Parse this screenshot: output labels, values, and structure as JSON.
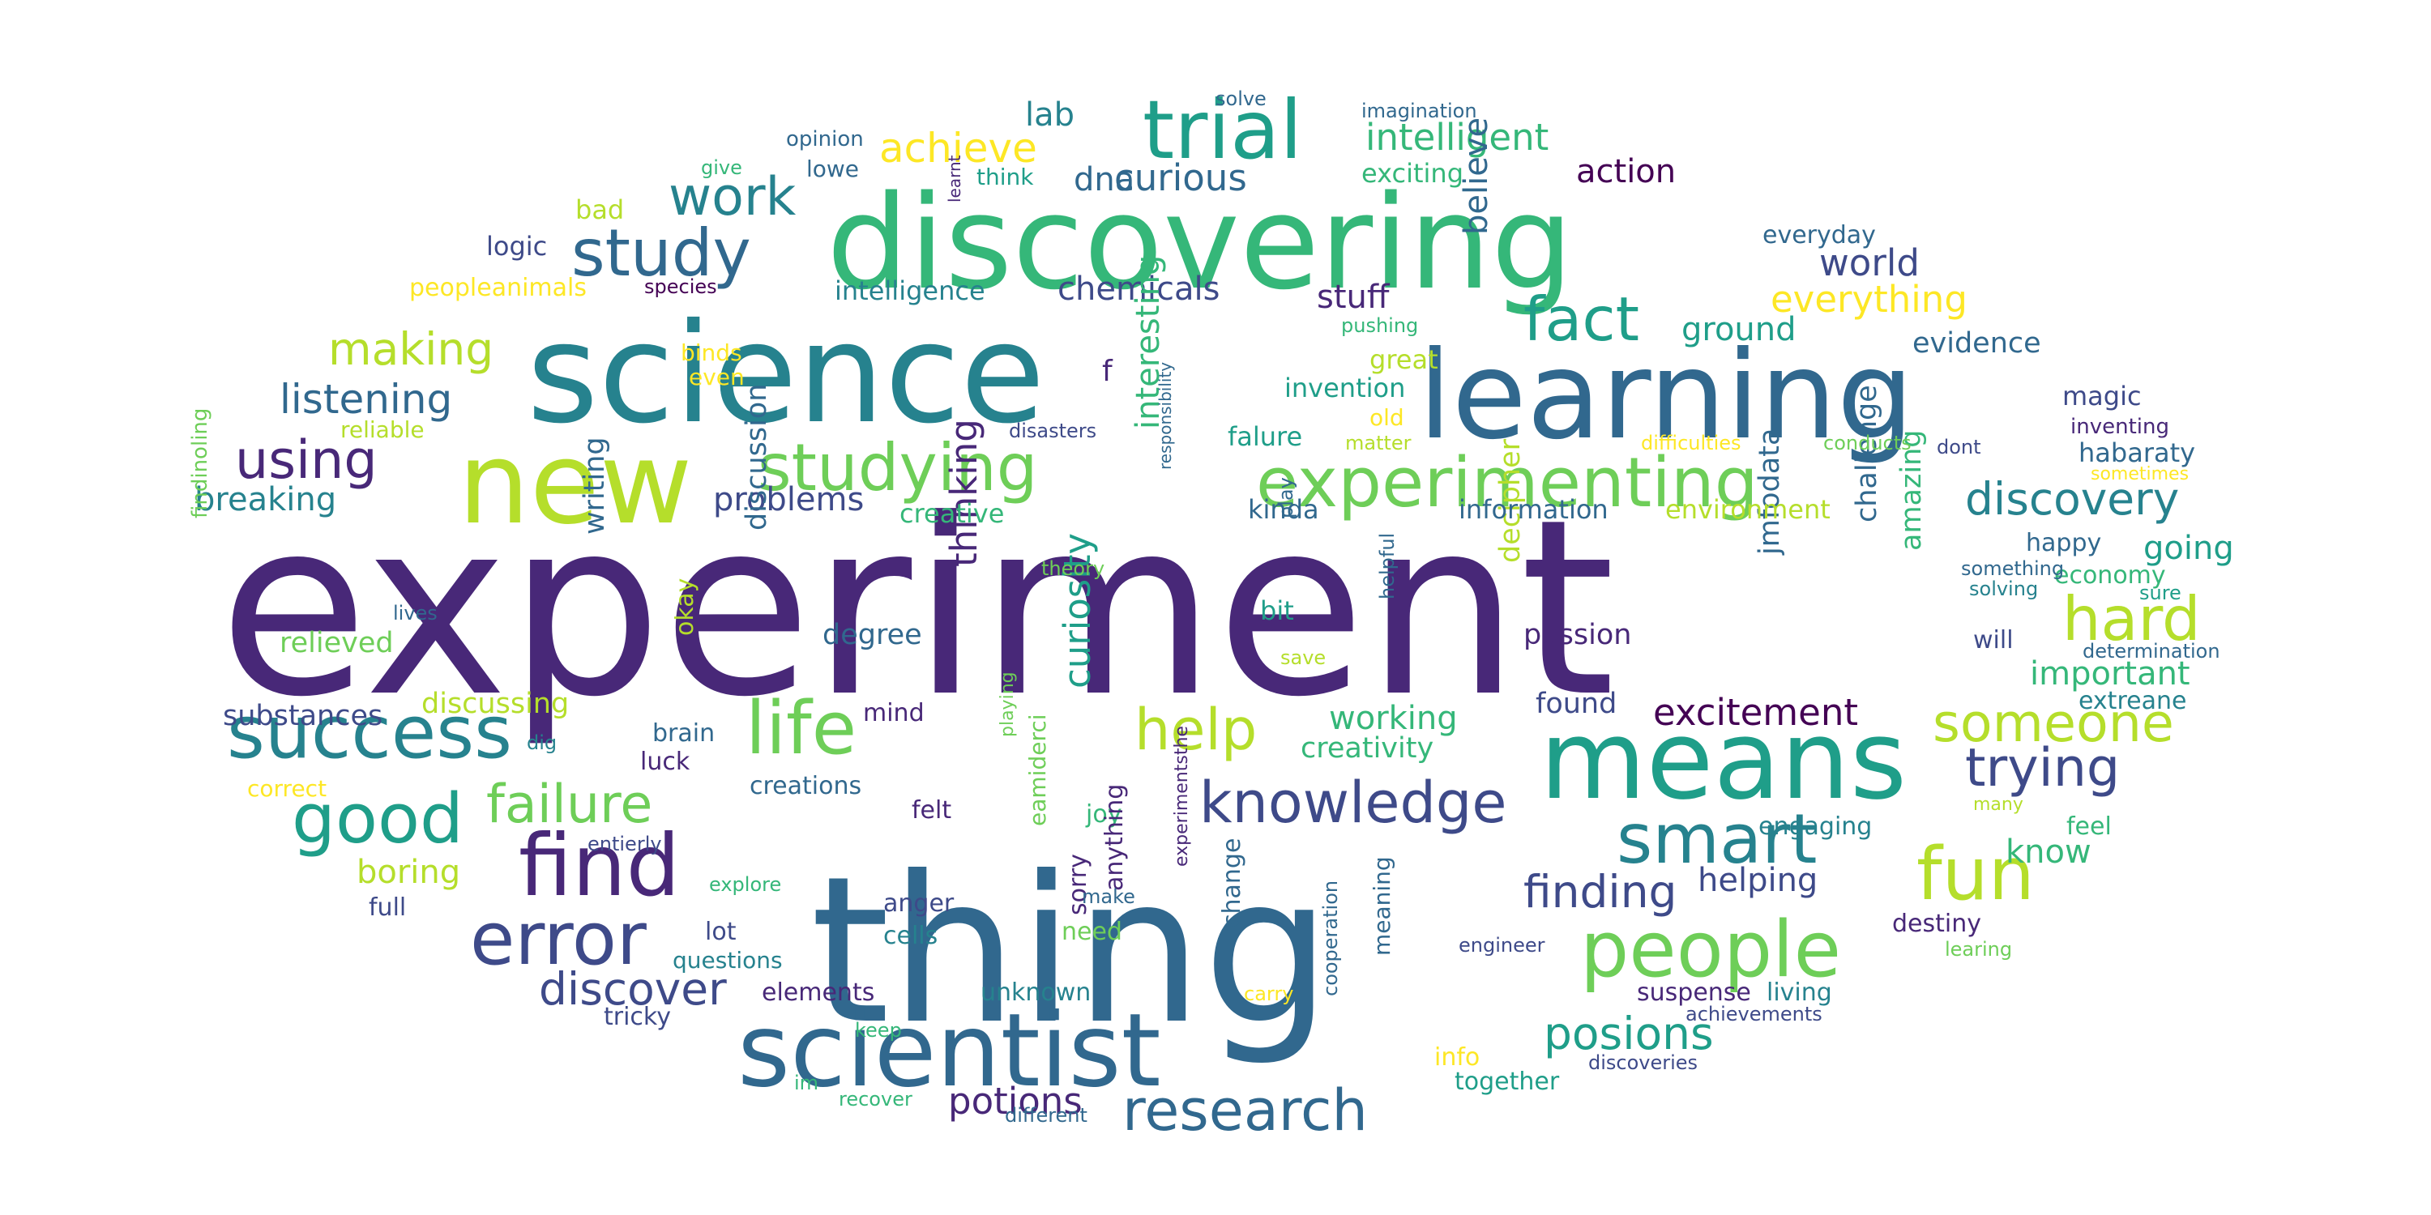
{
  "palette": {
    "purple": "#482878",
    "blue": "#3e4a89",
    "slate": "#31688e",
    "teal": "#26828e",
    "green": "#1f9e89",
    "mint": "#35b779",
    "lime": "#6ece58",
    "yellowgreen": "#b5de2b",
    "yellow": "#fde725",
    "dark": "#440154"
  },
  "words": [
    {
      "text": "experiment",
      "color": "purple"
    },
    {
      "text": "thing",
      "color": "slate"
    },
    {
      "text": "science",
      "color": "teal"
    },
    {
      "text": "discovering",
      "color": "mint"
    },
    {
      "text": "learning",
      "color": "slate"
    },
    {
      "text": "means",
      "color": "green"
    },
    {
      "text": "new",
      "color": "yellowgreen"
    },
    {
      "text": "experimenting",
      "color": "lime"
    },
    {
      "text": "scientist",
      "color": "slate"
    },
    {
      "text": "people",
      "color": "lime"
    },
    {
      "text": "trial",
      "color": "green"
    },
    {
      "text": "studying",
      "color": "lime"
    },
    {
      "text": "find",
      "color": "purple"
    },
    {
      "text": "error",
      "color": "blue"
    },
    {
      "text": "success",
      "color": "teal"
    },
    {
      "text": "good",
      "color": "green"
    },
    {
      "text": "life",
      "color": "lime"
    },
    {
      "text": "fact",
      "color": "green"
    },
    {
      "text": "study",
      "color": "slate"
    },
    {
      "text": "hard",
      "color": "yellowgreen"
    },
    {
      "text": "fun",
      "color": "yellowgreen"
    },
    {
      "text": "smart",
      "color": "teal"
    },
    {
      "text": "knowledge",
      "color": "blue"
    },
    {
      "text": "help",
      "color": "yellowgreen"
    },
    {
      "text": "failure",
      "color": "lime"
    },
    {
      "text": "research",
      "color": "slate"
    },
    {
      "text": "trying",
      "color": "blue"
    },
    {
      "text": "someone",
      "color": "yellowgreen"
    },
    {
      "text": "discover",
      "color": "blue"
    },
    {
      "text": "work",
      "color": "teal"
    },
    {
      "text": "using",
      "color": "purple"
    },
    {
      "text": "finding",
      "color": "blue"
    },
    {
      "text": "posions",
      "color": "green"
    },
    {
      "text": "discovery",
      "color": "teal"
    },
    {
      "text": "making",
      "color": "yellowgreen"
    },
    {
      "text": "excitement",
      "color": "dark"
    },
    {
      "text": "intelligent",
      "color": "mint"
    },
    {
      "text": "achieve",
      "color": "yellow"
    },
    {
      "text": "everything",
      "color": "yellow"
    },
    {
      "text": "listening",
      "color": "slate"
    },
    {
      "text": "world",
      "color": "blue"
    },
    {
      "text": "curious",
      "color": "slate"
    },
    {
      "text": "potions",
      "color": "purple"
    },
    {
      "text": "chemicals",
      "color": "blue"
    },
    {
      "text": "stuff",
      "color": "purple"
    },
    {
      "text": "ground",
      "color": "green"
    },
    {
      "text": "going",
      "color": "green"
    },
    {
      "text": "important",
      "color": "mint"
    },
    {
      "text": "working",
      "color": "mint"
    },
    {
      "text": "helping",
      "color": "blue"
    },
    {
      "text": "know",
      "color": "mint"
    },
    {
      "text": "believe",
      "color": "slate"
    },
    {
      "text": "breaking",
      "color": "teal"
    },
    {
      "text": "problems",
      "color": "blue"
    },
    {
      "text": "boring",
      "color": "yellowgreen"
    },
    {
      "text": "action",
      "color": "dark"
    },
    {
      "text": "lab",
      "color": "teal"
    },
    {
      "text": "dna",
      "color": "slate"
    },
    {
      "text": "curiosity",
      "color": "green"
    },
    {
      "text": "thinking",
      "color": "purple"
    },
    {
      "text": "interesting",
      "color": "mint"
    },
    {
      "text": "discussing",
      "color": "yellowgreen"
    },
    {
      "text": "substances",
      "color": "blue"
    },
    {
      "text": "relieved",
      "color": "lime"
    },
    {
      "text": "writing",
      "color": "slate"
    },
    {
      "text": "discussion",
      "color": "slate"
    },
    {
      "text": "degree",
      "color": "slate"
    },
    {
      "text": "creativity",
      "color": "mint"
    },
    {
      "text": "passion",
      "color": "purple"
    },
    {
      "text": "found",
      "color": "blue"
    },
    {
      "text": "challenge",
      "color": "slate"
    },
    {
      "text": "amazing",
      "color": "mint"
    },
    {
      "text": "jmfodata",
      "color": "slate"
    },
    {
      "text": "decipher",
      "color": "yellowgreen"
    },
    {
      "text": "evidence",
      "color": "slate"
    },
    {
      "text": "magic",
      "color": "blue"
    },
    {
      "text": "habaraty",
      "color": "slate"
    },
    {
      "text": "environment",
      "color": "yellowgreen"
    },
    {
      "text": "information",
      "color": "slate"
    },
    {
      "text": "creative",
      "color": "mint"
    },
    {
      "text": "invention",
      "color": "green"
    },
    {
      "text": "great",
      "color": "yellowgreen"
    },
    {
      "text": "falure",
      "color": "green"
    },
    {
      "text": "kinda",
      "color": "slate"
    },
    {
      "text": "bit",
      "color": "green"
    },
    {
      "text": "intelligence",
      "color": "teal"
    },
    {
      "text": "exciting",
      "color": "mint"
    },
    {
      "text": "logic",
      "color": "blue"
    },
    {
      "text": "bad",
      "color": "yellowgreen"
    },
    {
      "text": "peopleanimals",
      "color": "yellow"
    },
    {
      "text": "everyday",
      "color": "slate"
    },
    {
      "text": "happy",
      "color": "slate"
    },
    {
      "text": "economy",
      "color": "mint"
    },
    {
      "text": "will",
      "color": "blue"
    },
    {
      "text": "extreane",
      "color": "teal"
    },
    {
      "text": "feel",
      "color": "mint"
    },
    {
      "text": "engaging",
      "color": "teal"
    },
    {
      "text": "destiny",
      "color": "purple"
    },
    {
      "text": "living",
      "color": "teal"
    },
    {
      "text": "suspense",
      "color": "purple"
    },
    {
      "text": "unknown",
      "color": "teal"
    },
    {
      "text": "elements",
      "color": "purple"
    },
    {
      "text": "cells",
      "color": "teal"
    },
    {
      "text": "anger",
      "color": "blue"
    },
    {
      "text": "lot",
      "color": "blue"
    },
    {
      "text": "questions",
      "color": "teal"
    },
    {
      "text": "tricky",
      "color": "blue"
    },
    {
      "text": "creations",
      "color": "slate"
    },
    {
      "text": "felt",
      "color": "purple"
    },
    {
      "text": "joy",
      "color": "mint"
    },
    {
      "text": "need",
      "color": "lime"
    },
    {
      "text": "change",
      "color": "slate"
    },
    {
      "text": "sorry",
      "color": "purple"
    },
    {
      "text": "together",
      "color": "green"
    },
    {
      "text": "info",
      "color": "yellow"
    },
    {
      "text": "brain",
      "color": "slate"
    },
    {
      "text": "luck",
      "color": "purple"
    },
    {
      "text": "mind",
      "color": "purple"
    },
    {
      "text": "full",
      "color": "blue"
    },
    {
      "text": "reliable",
      "color": "yellowgreen"
    },
    {
      "text": "binds",
      "color": "yellow"
    },
    {
      "text": "even",
      "color": "yellow"
    },
    {
      "text": "old",
      "color": "yellow"
    },
    {
      "text": "okay",
      "color": "yellowgreen"
    },
    {
      "text": "anything",
      "color": "purple"
    },
    {
      "text": "eamiderci",
      "color": "lime"
    },
    {
      "text": "meaning",
      "color": "slate"
    },
    {
      "text": "cooperation",
      "color": "slate"
    },
    {
      "text": "engineer",
      "color": "blue"
    },
    {
      "text": "achievements",
      "color": "blue"
    },
    {
      "text": "discoveries",
      "color": "blue"
    },
    {
      "text": "learing",
      "color": "lime"
    },
    {
      "text": "many",
      "color": "yellowgreen"
    },
    {
      "text": "sure",
      "color": "green"
    },
    {
      "text": "solving",
      "color": "teal"
    },
    {
      "text": "something",
      "color": "slate"
    },
    {
      "text": "determination",
      "color": "slate"
    },
    {
      "text": "inventing",
      "color": "purple"
    },
    {
      "text": "dont",
      "color": "blue"
    },
    {
      "text": "sometimes",
      "color": "yellow"
    },
    {
      "text": "conducts",
      "color": "lime"
    },
    {
      "text": "difficulties",
      "color": "yellow"
    },
    {
      "text": "matter",
      "color": "yellowgreen"
    },
    {
      "text": "disasters",
      "color": "blue"
    },
    {
      "text": "pushing",
      "color": "mint"
    },
    {
      "text": "species",
      "color": "dark"
    },
    {
      "text": "think",
      "color": "green"
    },
    {
      "text": "lowe",
      "color": "slate"
    },
    {
      "text": "opinion",
      "color": "slate"
    },
    {
      "text": "give",
      "color": "mint"
    },
    {
      "text": "learnt",
      "color": "purple"
    },
    {
      "text": "solve",
      "color": "slate"
    },
    {
      "text": "imagination",
      "color": "slate"
    },
    {
      "text": "findinoling",
      "color": "lime"
    },
    {
      "text": "lives",
      "color": "slate"
    },
    {
      "text": "dig",
      "color": "teal"
    },
    {
      "text": "correct",
      "color": "yellow"
    },
    {
      "text": "entierly",
      "color": "blue"
    },
    {
      "text": "explore",
      "color": "mint"
    },
    {
      "text": "keep",
      "color": "mint"
    },
    {
      "text": "im",
      "color": "mint"
    },
    {
      "text": "recover",
      "color": "mint"
    },
    {
      "text": "different",
      "color": "slate"
    },
    {
      "text": "carry",
      "color": "yellow"
    },
    {
      "text": "make",
      "color": "slate"
    },
    {
      "text": "experimentsthe",
      "color": "purple"
    },
    {
      "text": "playing",
      "color": "lime"
    },
    {
      "text": "save",
      "color": "yellowgreen"
    },
    {
      "text": "helpful",
      "color": "slate"
    },
    {
      "text": "play",
      "color": "slate"
    },
    {
      "text": "theory",
      "color": "lime"
    },
    {
      "text": "responsibility",
      "color": "slate"
    },
    {
      "text": "f",
      "color": "purple"
    }
  ]
}
